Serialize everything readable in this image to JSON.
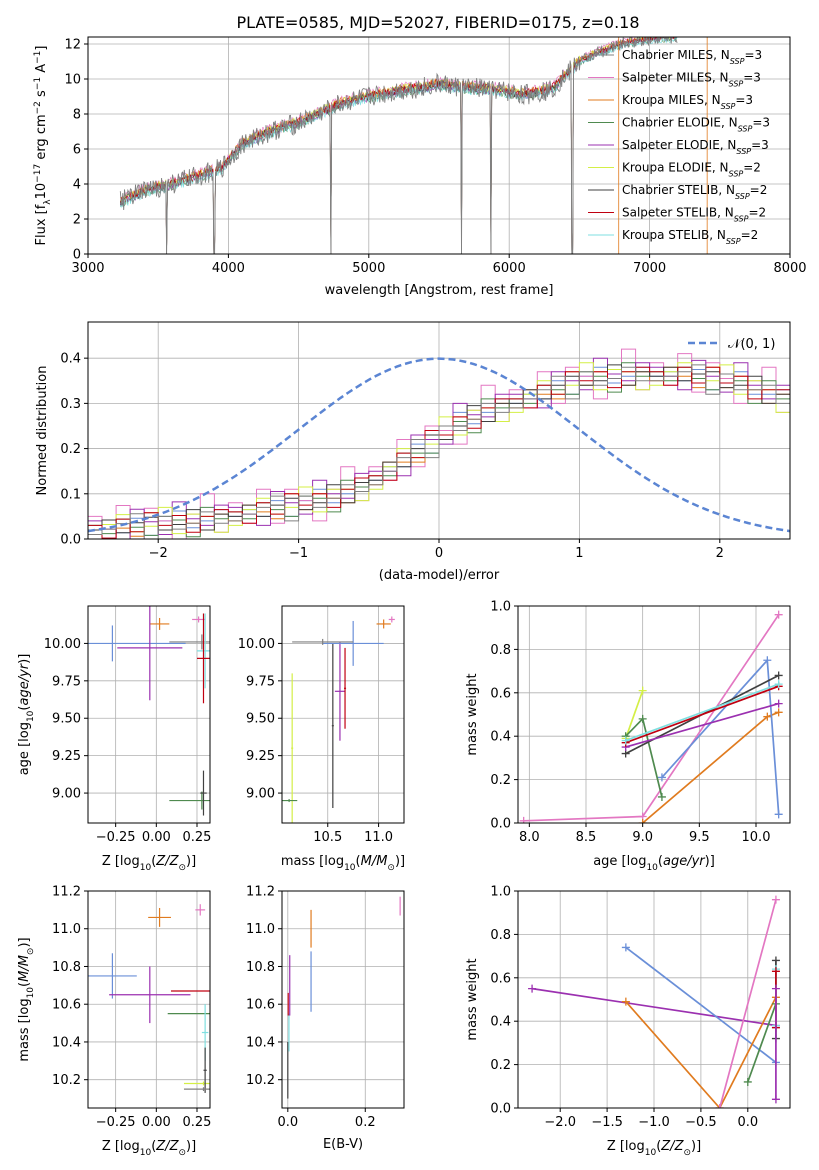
{
  "figure": {
    "title": "PLATE=0585, MJD=52027, FIBERID=0175, z=0.18"
  },
  "colors": {
    "chabrier_miles": "#808080",
    "salpeter_miles": "#e377c2",
    "kroupa_miles": "#e07b1f",
    "chabrier_elodie": "#4f8a4f",
    "salpeter_elodie": "#9b30b0",
    "kroupa_elodie": "#d4ef46",
    "chabrier_stelib": "#404040",
    "salpeter_stelib": "#c00010",
    "kroupa_stelib": "#7fdfe0",
    "blue_model": "#6a8fd8",
    "normal": "#5b85d3"
  },
  "chart_data": [
    {
      "id": "spectrum",
      "type": "line",
      "xlabel": "wavelength [Angstrom, rest frame]",
      "ylabel_parts": [
        "Flux [f",
        "λ",
        "10",
        "−17",
        " erg cm",
        "−2",
        " s",
        "−1",
        " A",
        "−1",
        "]"
      ],
      "xlim": [
        3000,
        8000
      ],
      "ylim": [
        0,
        12.4
      ],
      "xticks": [
        3000,
        4000,
        5000,
        6000,
        7000,
        8000
      ],
      "yticks": [
        0,
        2,
        4,
        6,
        8,
        10,
        12
      ],
      "legend_position": "upper-right",
      "legend": [
        {
          "imf": "Chabrier",
          "lib": "MILES",
          "n": "3",
          "color_key": "chabrier_miles"
        },
        {
          "imf": "Salpeter",
          "lib": "MILES",
          "n": "3",
          "color_key": "salpeter_miles"
        },
        {
          "imf": "Kroupa",
          "lib": "MILES",
          "n": "3",
          "color_key": "kroupa_miles"
        },
        {
          "imf": "Chabrier",
          "lib": "ELODIE",
          "n": "3",
          "color_key": "chabrier_elodie"
        },
        {
          "imf": "Salpeter",
          "lib": "ELODIE",
          "n": "3",
          "color_key": "salpeter_elodie"
        },
        {
          "imf": "Kroupa",
          "lib": "ELODIE",
          "n": "2",
          "color_key": "kroupa_elodie"
        },
        {
          "imf": "Chabrier",
          "lib": "STELIB",
          "n": "2",
          "color_key": "chabrier_stelib"
        },
        {
          "imf": "Salpeter",
          "lib": "STELIB",
          "n": "2",
          "color_key": "salpeter_stelib"
        },
        {
          "imf": "Kroupa",
          "lib": "STELIB",
          "n": "2",
          "color_key": "kroupa_stelib"
        }
      ],
      "continuum": {
        "x": [
          3230,
          3400,
          3600,
          3800,
          3950,
          4100,
          4300,
          4500,
          4800,
          5000,
          5200,
          5500,
          5700,
          5900,
          6100,
          6300,
          6500,
          6600,
          6700,
          6800,
          7000,
          7200
        ],
        "y": [
          3.0,
          3.6,
          4.0,
          4.5,
          4.9,
          6.3,
          7.0,
          7.5,
          8.6,
          9.0,
          9.3,
          9.7,
          9.5,
          9.4,
          9.1,
          9.4,
          11.0,
          11.4,
          11.7,
          12.0,
          12.3,
          12.4
        ]
      },
      "series_offsets": [
        0.0,
        0.2,
        0.1,
        -0.1,
        -0.05,
        0.1,
        0.0,
        0.05,
        -0.15
      ],
      "dips": [
        {
          "x": 3560,
          "y": 0
        },
        {
          "x": 3900,
          "y": 0
        },
        {
          "x": 4730,
          "y": 0
        },
        {
          "x": 5660,
          "y": 0
        },
        {
          "x": 5870,
          "y": 0
        },
        {
          "x": 6450,
          "y": 0
        }
      ]
    },
    {
      "id": "residuals",
      "type": "histogram",
      "xlabel": "(data-model)/error",
      "ylabel": "Normed distribution",
      "xlim": [
        -2.5,
        2.5
      ],
      "ylim": [
        0,
        0.48
      ],
      "xticks": [
        -2,
        -1,
        0,
        1,
        2
      ],
      "yticks": [
        0.0,
        0.1,
        0.2,
        0.3,
        0.4
      ],
      "legend_label": "𝒩(0, 1)",
      "legend_position": "upper-right",
      "bin_width": 0.1,
      "base": [
        0.02,
        0.022,
        0.024,
        0.026,
        0.028,
        0.03,
        0.032,
        0.035,
        0.04,
        0.045,
        0.05,
        0.055,
        0.06,
        0.065,
        0.07,
        0.075,
        0.08,
        0.09,
        0.1,
        0.115,
        0.13,
        0.15,
        0.17,
        0.19,
        0.21,
        0.23,
        0.25,
        0.265,
        0.28,
        0.29,
        0.3,
        0.31,
        0.32,
        0.33,
        0.34,
        0.35,
        0.35,
        0.355,
        0.36,
        0.36,
        0.36,
        0.36,
        0.36,
        0.355,
        0.35,
        0.345,
        0.34,
        0.33,
        0.32,
        0.31,
        0.3,
        0.29,
        0.28,
        0.27,
        0.26,
        0.25,
        0.24,
        0.22,
        0.2,
        0.18
      ],
      "series_offsets": [
        [
          0.0,
          0.01,
          -0.01,
          0.02,
          -0.02,
          0.01,
          0.03,
          -0.01,
          0.0,
          0.02
        ],
        [
          0.03,
          -0.02,
          0.05,
          -0.03,
          0.04,
          0.01,
          -0.04,
          0.02,
          0.06,
          -0.03
        ],
        [
          -0.01,
          0.02,
          0.0,
          -0.02,
          0.03,
          -0.01,
          0.02,
          0.0,
          -0.02,
          0.01
        ],
        [
          0.01,
          -0.01,
          0.02,
          0.0,
          -0.02,
          0.02,
          0.01,
          -0.03,
          0.03,
          0.0
        ],
        [
          0.02,
          0.0,
          -0.03,
          0.04,
          0.01,
          -0.02,
          0.05,
          0.01,
          -0.01,
          0.03
        ],
        [
          -0.02,
          0.01,
          0.03,
          -0.01,
          0.0,
          0.04,
          -0.02,
          0.02,
          0.01,
          -0.03
        ],
        [
          0.0,
          0.02,
          -0.01,
          0.01,
          0.02,
          -0.01,
          0.0,
          0.03,
          -0.02,
          0.01
        ],
        [
          0.01,
          -0.02,
          0.02,
          -0.01,
          0.03,
          0.0,
          0.02,
          -0.02,
          0.01,
          0.02
        ],
        [
          -0.01,
          0.0,
          0.01,
          0.03,
          -0.03,
          0.02,
          -0.01,
          0.0,
          0.02,
          -0.01
        ]
      ],
      "normal": {
        "mu": 0,
        "sigma": 1
      }
    },
    {
      "id": "age-vs-Z",
      "type": "errorbar",
      "xlabel": "Z [log10(Z/Z⊙)]",
      "ylabel": "age [log10(age/yr)]",
      "xlim": [
        -0.42,
        0.33
      ],
      "ylim": [
        8.8,
        10.25
      ],
      "xticks": [
        -0.25,
        0.0,
        0.25
      ],
      "yticks": [
        9.0,
        9.25,
        9.5,
        9.75,
        10.0
      ],
      "points": [
        {
          "x": -0.27,
          "y": 10.0,
          "xerr": 0.45,
          "yerr": 0.12,
          "color_key": "blue_model"
        },
        {
          "x": 0.02,
          "y": 10.13,
          "xerr": 0.06,
          "yerr": 0.04,
          "color_key": "kroupa_miles"
        },
        {
          "x": 0.26,
          "y": 10.16,
          "xerr": 0.04,
          "yerr": 0.02,
          "color_key": "salpeter_miles"
        },
        {
          "x": -0.04,
          "y": 9.97,
          "xerr": 0.2,
          "yerr": 0.35,
          "color_key": "salpeter_elodie"
        },
        {
          "x": 0.28,
          "y": 10.01,
          "xerr": 0.2,
          "yerr": 0.05,
          "color_key": "chabrier_miles"
        },
        {
          "x": 0.3,
          "y": 9.95,
          "xerr": 0.05,
          "yerr": 0.25,
          "color_key": "kroupa_stelib"
        },
        {
          "x": 0.29,
          "y": 9.9,
          "xerr": 0.04,
          "yerr": 0.3,
          "color_key": "salpeter_stelib"
        },
        {
          "x": 0.28,
          "y": 8.95,
          "xerr": 0.2,
          "yerr": 0.06,
          "color_key": "chabrier_elodie"
        },
        {
          "x": 0.29,
          "y": 9.0,
          "xerr": 0.02,
          "yerr": 0.15,
          "color_key": "chabrier_stelib"
        }
      ]
    },
    {
      "id": "age-vs-mass",
      "type": "errorbar",
      "xlabel": "mass [log10(M/M⊙)]",
      "ylabel": "",
      "xlim": [
        10.05,
        11.25
      ],
      "ylim": [
        8.8,
        10.25
      ],
      "xticks": [
        10.5,
        11.0
      ],
      "yticks": [
        9.0,
        9.25,
        9.5,
        9.75,
        10.0
      ],
      "points": [
        {
          "x": 10.15,
          "y": 9.3,
          "xerr": 0.01,
          "yerr": 0.5,
          "color_key": "kroupa_elodie"
        },
        {
          "x": 10.12,
          "y": 8.95,
          "xerr": 0.08,
          "yerr": 0.01,
          "color_key": "chabrier_elodie"
        },
        {
          "x": 10.55,
          "y": 9.45,
          "xerr": 0.01,
          "yerr": 0.55,
          "color_key": "chabrier_stelib"
        },
        {
          "x": 10.62,
          "y": 9.68,
          "xerr": 0.05,
          "yerr": 0.33,
          "color_key": "salpeter_elodie"
        },
        {
          "x": 10.67,
          "y": 9.7,
          "xerr": 0.01,
          "yerr": 0.27,
          "color_key": "salpeter_stelib"
        },
        {
          "x": 10.75,
          "y": 10.0,
          "xerr": 0.3,
          "yerr": 0.15,
          "color_key": "blue_model"
        },
        {
          "x": 10.45,
          "y": 10.01,
          "xerr": 0.3,
          "yerr": 0.02,
          "color_key": "chabrier_miles"
        },
        {
          "x": 11.05,
          "y": 10.13,
          "xerr": 0.07,
          "yerr": 0.03,
          "color_key": "kroupa_miles"
        },
        {
          "x": 11.13,
          "y": 10.16,
          "xerr": 0.03,
          "yerr": 0.02,
          "color_key": "salpeter_miles"
        }
      ]
    },
    {
      "id": "weight-vs-age",
      "type": "line",
      "xlabel": "age [log10(age/yr)]",
      "ylabel": "mass weight",
      "xlim": [
        7.9,
        10.3
      ],
      "ylim": [
        0,
        1.0
      ],
      "xticks": [
        8.0,
        8.5,
        9.0,
        9.5,
        10.0
      ],
      "yticks": [
        0.0,
        0.2,
        0.4,
        0.6,
        0.8,
        1.0
      ],
      "series": [
        {
          "color_key": "salpeter_miles",
          "x": [
            7.95,
            9.0,
            10.2
          ],
          "y": [
            0.01,
            0.03,
            0.96
          ]
        },
        {
          "color_key": "kroupa_miles",
          "x": [
            9.0,
            10.1,
            10.2
          ],
          "y": [
            0.0,
            0.49,
            0.51
          ]
        },
        {
          "color_key": "blue_model",
          "x": [
            9.17,
            10.1,
            10.2
          ],
          "y": [
            0.21,
            0.75,
            0.04
          ]
        },
        {
          "color_key": "kroupa_elodie",
          "x": [
            8.85,
            9.0
          ],
          "y": [
            0.39,
            0.61
          ]
        },
        {
          "color_key": "chabrier_elodie",
          "x": [
            8.85,
            9.0,
            9.17
          ],
          "y": [
            0.4,
            0.48,
            0.12
          ]
        },
        {
          "color_key": "chabrier_stelib",
          "x": [
            8.85,
            10.2
          ],
          "y": [
            0.32,
            0.68
          ]
        },
        {
          "color_key": "salpeter_elodie",
          "x": [
            8.85,
            10.2
          ],
          "y": [
            0.35,
            0.55
          ]
        },
        {
          "color_key": "salpeter_stelib",
          "x": [
            8.85,
            10.2
          ],
          "y": [
            0.37,
            0.63
          ]
        },
        {
          "color_key": "kroupa_stelib",
          "x": [
            8.85,
            10.2
          ],
          "y": [
            0.38,
            0.64
          ]
        }
      ]
    },
    {
      "id": "mass-vs-Z",
      "type": "errorbar",
      "xlabel": "Z [log10(Z/Z⊙)]",
      "ylabel": "mass [log10(M/M⊙)]",
      "xlim": [
        -0.42,
        0.33
      ],
      "ylim": [
        10.05,
        11.2
      ],
      "xticks": [
        -0.25,
        0.0,
        0.25
      ],
      "yticks": [
        10.2,
        10.4,
        10.6,
        10.8,
        11.0,
        11.2
      ],
      "points": [
        {
          "x": -0.27,
          "y": 10.75,
          "xerr": 0.15,
          "yerr": 0.12,
          "color_key": "blue_model"
        },
        {
          "x": 0.02,
          "y": 11.06,
          "xerr": 0.07,
          "yerr": 0.05,
          "color_key": "kroupa_miles"
        },
        {
          "x": 0.27,
          "y": 11.1,
          "xerr": 0.03,
          "yerr": 0.03,
          "color_key": "salpeter_miles"
        },
        {
          "x": -0.04,
          "y": 10.65,
          "xerr": 0.25,
          "yerr": 0.15,
          "color_key": "salpeter_elodie"
        },
        {
          "x": 0.29,
          "y": 10.67,
          "xerr": 0.2,
          "yerr": 0.0,
          "color_key": "salpeter_stelib"
        },
        {
          "x": 0.29,
          "y": 10.55,
          "xerr": 0.22,
          "yerr": 0.0,
          "color_key": "chabrier_elodie"
        },
        {
          "x": 0.3,
          "y": 10.45,
          "xerr": 0.02,
          "yerr": 0.15,
          "color_key": "kroupa_stelib"
        },
        {
          "x": 0.29,
          "y": 10.18,
          "xerr": 0.12,
          "yerr": 0.01,
          "color_key": "kroupa_elodie"
        },
        {
          "x": 0.3,
          "y": 10.25,
          "xerr": 0.01,
          "yerr": 0.12,
          "color_key": "chabrier_stelib"
        },
        {
          "x": 0.29,
          "y": 10.15,
          "xerr": 0.12,
          "yerr": 0.01,
          "color_key": "chabrier_miles"
        }
      ]
    },
    {
      "id": "mass-vs-ebv",
      "type": "errorbar",
      "xlabel": "E(B-V)",
      "ylabel": "",
      "xlim": [
        -0.015,
        0.3
      ],
      "ylim": [
        10.05,
        11.2
      ],
      "xticks": [
        0.0,
        0.2
      ],
      "yticks": [
        10.2,
        10.4,
        10.6,
        10.8,
        11.0,
        11.2
      ],
      "points": [
        {
          "x": 0.0,
          "y": 10.25,
          "xerr": 0,
          "yerr": 0.15,
          "color_key": "chabrier_stelib"
        },
        {
          "x": 0.003,
          "y": 10.45,
          "xerr": 0,
          "yerr": 0.1,
          "color_key": "kroupa_stelib"
        },
        {
          "x": 0.005,
          "y": 10.7,
          "xerr": 0,
          "yerr": 0.16,
          "color_key": "salpeter_elodie"
        },
        {
          "x": 0.001,
          "y": 10.6,
          "xerr": 0,
          "yerr": 0.06,
          "color_key": "salpeter_stelib"
        },
        {
          "x": 0.06,
          "y": 10.72,
          "xerr": 0,
          "yerr": 0.16,
          "color_key": "blue_model"
        },
        {
          "x": 0.06,
          "y": 11.0,
          "xerr": 0,
          "yerr": 0.1,
          "color_key": "kroupa_miles"
        },
        {
          "x": 0.29,
          "y": 11.12,
          "xerr": 0,
          "yerr": 0.05,
          "color_key": "salpeter_miles"
        }
      ]
    },
    {
      "id": "weight-vs-Z",
      "type": "line",
      "xlabel": "Z [log10(Z/Z⊙)]",
      "ylabel": "mass weight",
      "xlim": [
        -2.45,
        0.45
      ],
      "ylim": [
        0,
        1.0
      ],
      "xticks": [
        -2.0,
        -1.5,
        -1.0,
        -0.5,
        0.0
      ],
      "yticks": [
        0.0,
        0.2,
        0.4,
        0.6,
        0.8,
        1.0
      ],
      "series": [
        {
          "color_key": "salpeter_elodie",
          "x": [
            -2.3,
            0.3
          ],
          "y": [
            0.55,
            0.38
          ]
        },
        {
          "color_key": "blue_model",
          "x": [
            -1.3,
            0.3
          ],
          "y": [
            0.74,
            0.21
          ]
        },
        {
          "color_key": "kroupa_miles",
          "x": [
            -1.3,
            -0.3,
            0.3
          ],
          "y": [
            0.49,
            0.0,
            0.51
          ]
        },
        {
          "color_key": "salpeter_miles",
          "x": [
            -0.3,
            0.3
          ],
          "y": [
            0.0,
            0.96
          ]
        },
        {
          "color_key": "chabrier_elodie",
          "x": [
            0.0,
            0.3
          ],
          "y": [
            0.12,
            0.48
          ]
        },
        {
          "color_key": "chabrier_stelib",
          "x": [
            0.3,
            0.3
          ],
          "y": [
            0.32,
            0.68
          ]
        },
        {
          "color_key": "kroupa_stelib",
          "x": [
            0.3,
            0.3
          ],
          "y": [
            0.38,
            0.64
          ]
        },
        {
          "color_key": "salpeter_stelib",
          "x": [
            0.3,
            0.3
          ],
          "y": [
            0.37,
            0.63
          ]
        },
        {
          "color_key": "salpeter_elodie",
          "x": [
            0.3,
            0.3
          ],
          "y": [
            0.04,
            0.55
          ]
        }
      ]
    }
  ]
}
